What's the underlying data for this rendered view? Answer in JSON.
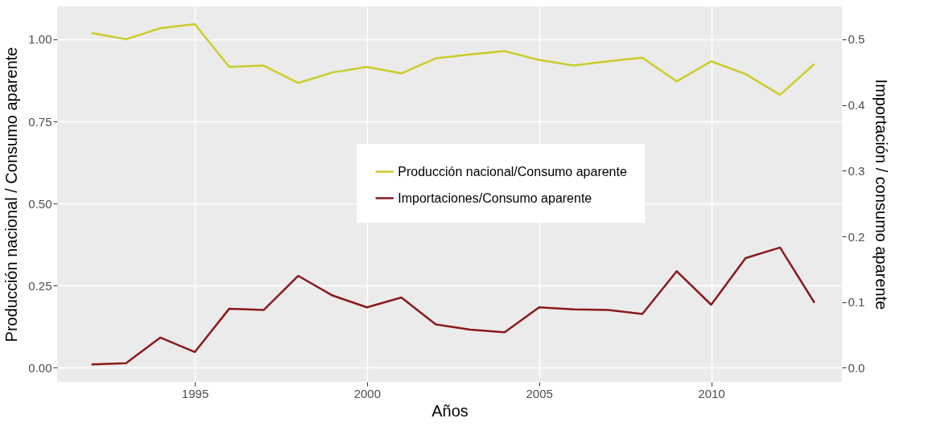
{
  "chart_data": {
    "type": "line",
    "xlabel": "Años",
    "ylabel": "Producción nacional / Consumo aparente",
    "y2label": "Importación / consumo aparente",
    "x": [
      1992,
      1993,
      1994,
      1995,
      1996,
      1997,
      1998,
      1999,
      2000,
      2001,
      2002,
      2003,
      2004,
      2005,
      2006,
      2007,
      2008,
      2009,
      2010,
      2011,
      2012,
      2013
    ],
    "series": [
      {
        "name": "Producción nacional/Consumo aparente",
        "color": "#cccc2a",
        "values": [
          1.019,
          1.0,
          1.034,
          1.046,
          0.916,
          0.92,
          0.867,
          0.899,
          0.916,
          0.896,
          0.942,
          0.954,
          0.964,
          0.937,
          0.92,
          0.933,
          0.944,
          0.872,
          0.933,
          0.894,
          0.831,
          0.925
        ]
      },
      {
        "name": "Importaciones/Consumo aparente",
        "color": "#8b1a1a",
        "axis": "y2",
        "values": [
          0.005,
          0.007,
          0.046,
          0.024,
          0.09,
          0.088,
          0.14,
          0.11,
          0.092,
          0.107,
          0.066,
          0.058,
          0.054,
          0.092,
          0.089,
          0.088,
          0.082,
          0.147,
          0.096,
          0.167,
          0.183,
          0.099
        ]
      }
    ],
    "xlim": [
      1991,
      2013.8
    ],
    "xticks": [
      1995,
      2000,
      2005,
      2010
    ],
    "ylim": [
      -0.043,
      1.1
    ],
    "yticks": [
      {
        "value": 0,
        "label": "0.00"
      },
      {
        "value": 0.25,
        "label": "0.25"
      },
      {
        "value": 0.5,
        "label": "0.50"
      },
      {
        "value": 0.75,
        "label": "0.75"
      },
      {
        "value": 1,
        "label": "1.00"
      }
    ],
    "y2lim": [
      -0.0215,
      0.55
    ],
    "y2ticks": [
      {
        "value": 0,
        "label": "0.0"
      },
      {
        "value": 0.1,
        "label": "0.1"
      },
      {
        "value": 0.2,
        "label": "0.2"
      },
      {
        "value": 0.3,
        "label": "0.3"
      },
      {
        "value": 0.4,
        "label": "0.4"
      },
      {
        "value": 0.5,
        "label": "0.5"
      }
    ],
    "grid": true,
    "legend": "right",
    "marker": "none",
    "line_style": "solid"
  }
}
